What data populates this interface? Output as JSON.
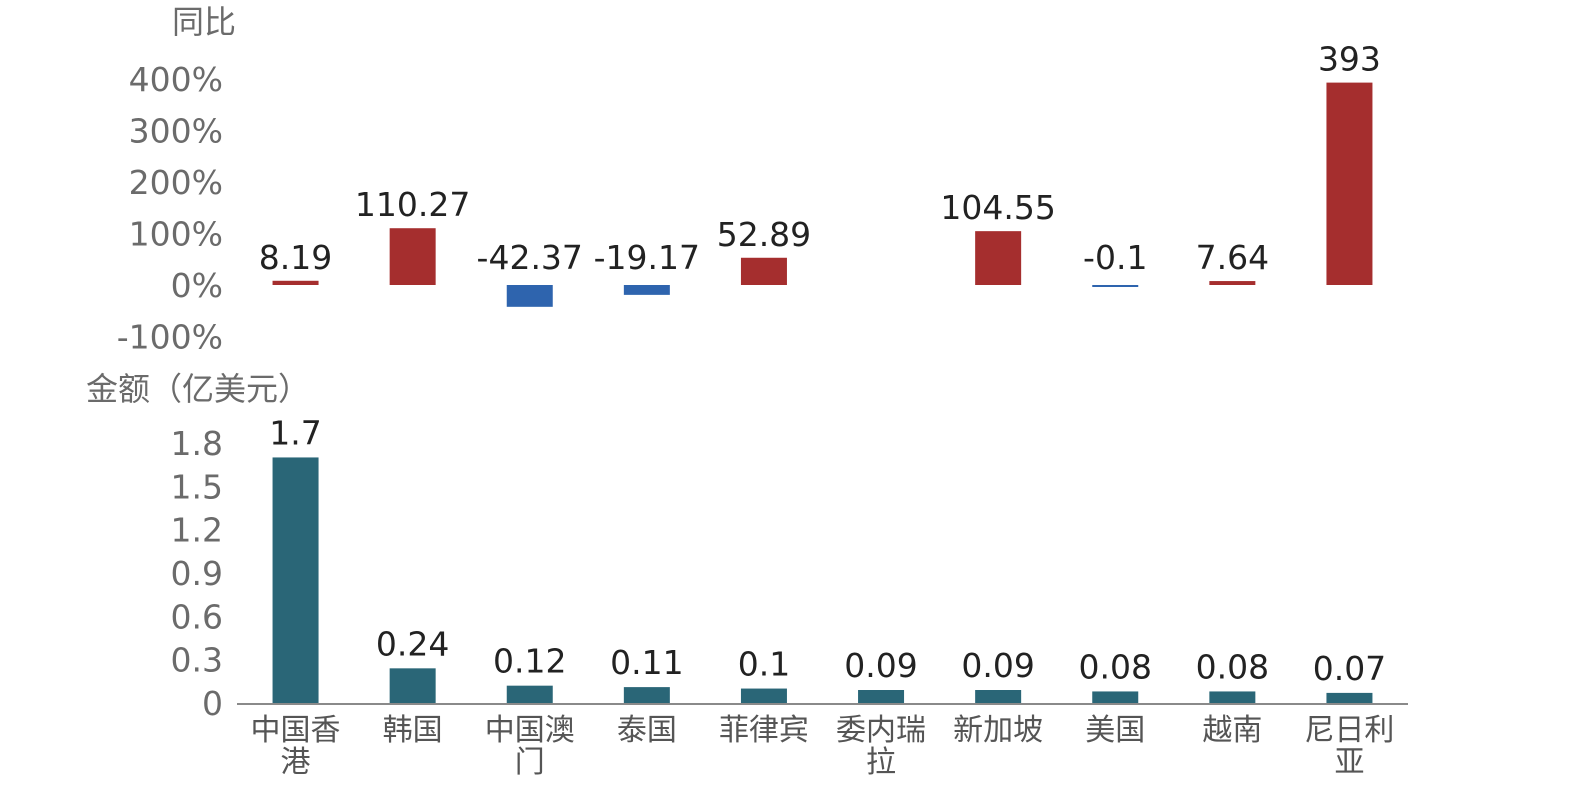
{
  "chart_data": [
    {
      "type": "bar",
      "ylabel": "同比",
      "ylim": [
        -100,
        400
      ],
      "yticks": [
        "400%",
        "300%",
        "200%",
        "100%",
        "0%",
        "-100%"
      ],
      "ytick_values": [
        400,
        300,
        200,
        100,
        0,
        -100
      ],
      "categories": [
        "中国香港",
        "韩国",
        "中国澳门",
        "泰国",
        "菲律宾",
        "委内瑞拉",
        "新加坡",
        "美国",
        "越南",
        "尼日利亚"
      ],
      "values": [
        8.19,
        110.27,
        -42.37,
        -19.17,
        52.89,
        null,
        104.55,
        -0.1,
        7.64,
        393
      ],
      "labels": [
        "8.19",
        "110.27",
        "-42.37",
        "-19.17",
        "52.89",
        "",
        "104.55",
        "-0.1",
        "7.64",
        "393"
      ],
      "colors": {
        "positive": "#A52E2E",
        "negative": "#2E64AE"
      },
      "grid": false
    },
    {
      "type": "bar",
      "ylabel": "金额（亿美元）",
      "ylim": [
        0,
        1.8
      ],
      "yticks": [
        "1.8",
        "1.5",
        "1.2",
        "0.9",
        "0.6",
        "0.3",
        "0"
      ],
      "ytick_values": [
        1.8,
        1.5,
        1.2,
        0.9,
        0.6,
        0.3,
        0
      ],
      "categories": [
        "中国香港",
        "韩国",
        "中国澳门",
        "泰国",
        "菲律宾",
        "委内瑞拉",
        "新加坡",
        "美国",
        "越南",
        "尼日利亚"
      ],
      "category_lines": [
        [
          "中国香",
          "港"
        ],
        [
          "韩国"
        ],
        [
          "中国澳",
          "门"
        ],
        [
          "泰国"
        ],
        [
          "菲律宾"
        ],
        [
          "委内瑞",
          "拉"
        ],
        [
          "新加坡"
        ],
        [
          "美国"
        ],
        [
          "越南"
        ],
        [
          "尼日利",
          "亚"
        ]
      ],
      "values": [
        1.7,
        0.24,
        0.12,
        0.11,
        0.1,
        0.09,
        0.09,
        0.08,
        0.08,
        0.07
      ],
      "labels": [
        "1.7",
        "0.24",
        "0.12",
        "0.11",
        "0.1",
        "0.09",
        "0.09",
        "0.08",
        "0.08",
        "0.07"
      ],
      "colors": {
        "bar": "#2A6677"
      },
      "grid": false
    }
  ]
}
